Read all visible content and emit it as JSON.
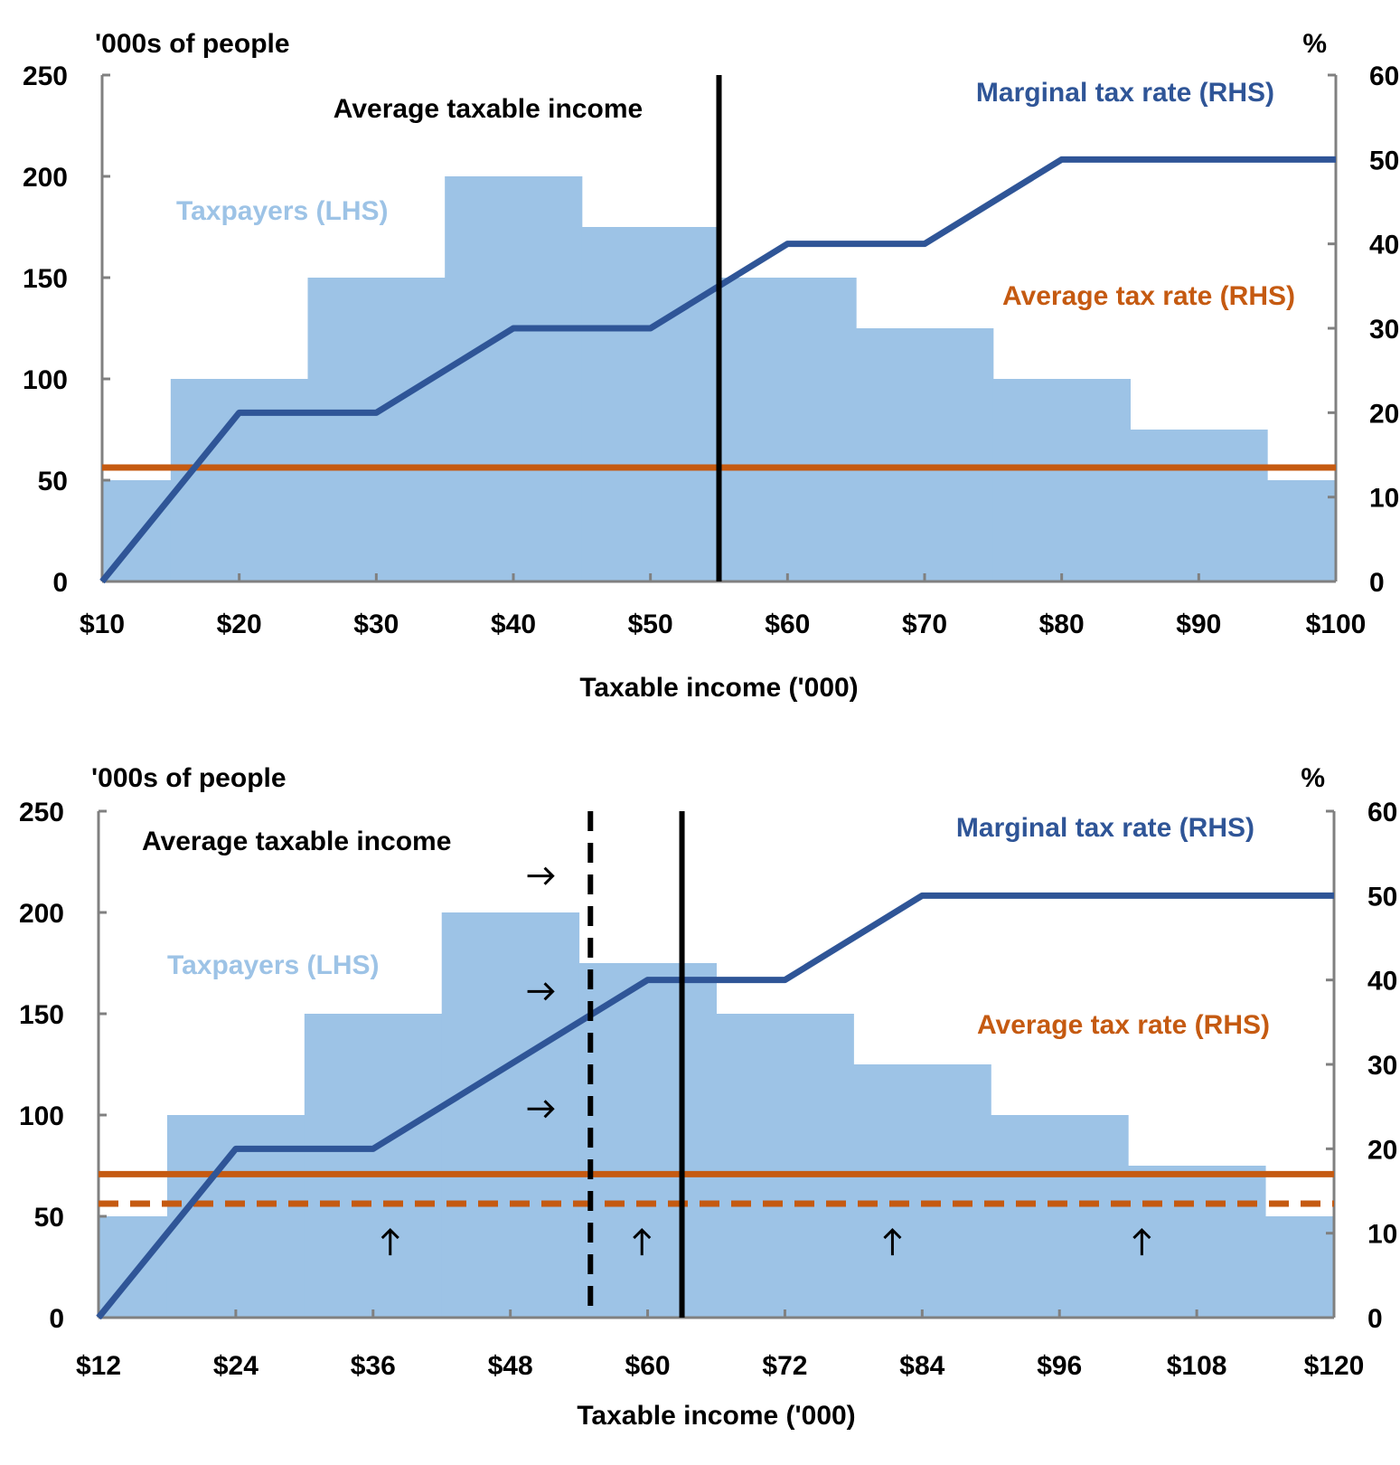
{
  "colors": {
    "taxpayers": "#9DC3E6",
    "marginal": "#2F5597",
    "average": "#C55A11",
    "axis": "#808080",
    "income_line": "#000000"
  },
  "chart_data": [
    {
      "type": "bar+line",
      "xlabel": "Taxable income ('000)",
      "ylabel_left": "'000s of people",
      "ylabel_right": "%",
      "xlim": [
        10,
        100
      ],
      "ylim_left": [
        0,
        250
      ],
      "ylim_right": [
        0,
        60
      ],
      "x_ticks": [
        "$10",
        "$20",
        "$30",
        "$40",
        "$50",
        "$60",
        "$70",
        "$80",
        "$90",
        "$100"
      ],
      "x_tick_values": [
        10,
        20,
        30,
        40,
        50,
        60,
        70,
        80,
        90,
        100
      ],
      "y_ticks_left": [
        "0",
        "50",
        "100",
        "150",
        "200",
        "250"
      ],
      "y_ticks_right": [
        "0",
        "10",
        "20",
        "30",
        "40",
        "50",
        "60"
      ],
      "grid": false,
      "taxpayers": {
        "name": "Taxpayers (LHS)",
        "bins": [
          [
            10,
            15,
            50
          ],
          [
            15,
            25,
            100
          ],
          [
            25,
            35,
            150
          ],
          [
            35,
            45,
            200
          ],
          [
            45,
            55,
            175
          ],
          [
            55,
            65,
            150
          ],
          [
            65,
            75,
            125
          ],
          [
            75,
            85,
            100
          ],
          [
            85,
            95,
            75
          ],
          [
            95,
            100,
            50
          ]
        ]
      },
      "marginal_tax_rate": {
        "name": "Marginal tax rate (RHS)",
        "points": [
          [
            10,
            0
          ],
          [
            20,
            20
          ],
          [
            30,
            20
          ],
          [
            40,
            30
          ],
          [
            50,
            30
          ],
          [
            60,
            40
          ],
          [
            70,
            40
          ],
          [
            80,
            50
          ],
          [
            100,
            50
          ]
        ]
      },
      "average_tax_rate": {
        "name": "Average tax rate (RHS)",
        "value": 13.5
      },
      "average_taxable_income": {
        "name": "Average taxable income",
        "value": 55
      },
      "dashed_average_tax_rate": null,
      "dashed_average_income": null,
      "arrows": []
    },
    {
      "type": "bar+line",
      "xlabel": "Taxable income ('000)",
      "ylabel_left": "'000s of people",
      "ylabel_right": "%",
      "xlim": [
        12,
        120
      ],
      "ylim_left": [
        0,
        250
      ],
      "ylim_right": [
        0,
        60
      ],
      "x_ticks": [
        "$12",
        "$24",
        "$36",
        "$48",
        "$60",
        "$72",
        "$84",
        "$96",
        "$108",
        "$120"
      ],
      "x_tick_values": [
        12,
        24,
        36,
        48,
        60,
        72,
        84,
        96,
        108,
        120
      ],
      "y_ticks_left": [
        "0",
        "50",
        "100",
        "150",
        "200",
        "250"
      ],
      "y_ticks_right": [
        "0",
        "10",
        "20",
        "30",
        "40",
        "50",
        "60"
      ],
      "grid": false,
      "taxpayers": {
        "name": "Taxpayers (LHS)",
        "bins": [
          [
            12,
            18,
            50
          ],
          [
            18,
            30,
            100
          ],
          [
            30,
            42,
            150
          ],
          [
            42,
            54,
            200
          ],
          [
            54,
            66,
            175
          ],
          [
            66,
            78,
            150
          ],
          [
            78,
            90,
            125
          ],
          [
            90,
            102,
            100
          ],
          [
            102,
            114,
            75
          ],
          [
            114,
            120,
            50
          ]
        ]
      },
      "marginal_tax_rate": {
        "name": "Marginal tax rate (RHS)",
        "points": [
          [
            12,
            0
          ],
          [
            24,
            20
          ],
          [
            36,
            20
          ],
          [
            60,
            40
          ],
          [
            72,
            40
          ],
          [
            84,
            50
          ],
          [
            120,
            50
          ]
        ]
      },
      "average_tax_rate": {
        "name": "Average tax rate (RHS)",
        "value": 17
      },
      "average_taxable_income": {
        "name": "Average taxable income",
        "value": 63
      },
      "dashed_average_tax_rate": 13.5,
      "dashed_average_income": 55,
      "arrows": [
        {
          "direction": "right",
          "x": 50.6,
          "y_left": 218
        },
        {
          "direction": "right",
          "x": 50.6,
          "y_left": 161
        },
        {
          "direction": "right",
          "x": 50.6,
          "y_left": 103
        },
        {
          "direction": "up",
          "x": 37.5,
          "y_left": 37
        },
        {
          "direction": "up",
          "x": 59.5,
          "y_left": 37
        },
        {
          "direction": "up",
          "x": 81.4,
          "y_left": 37
        },
        {
          "direction": "up",
          "x": 103.2,
          "y_left": 37
        }
      ]
    }
  ]
}
